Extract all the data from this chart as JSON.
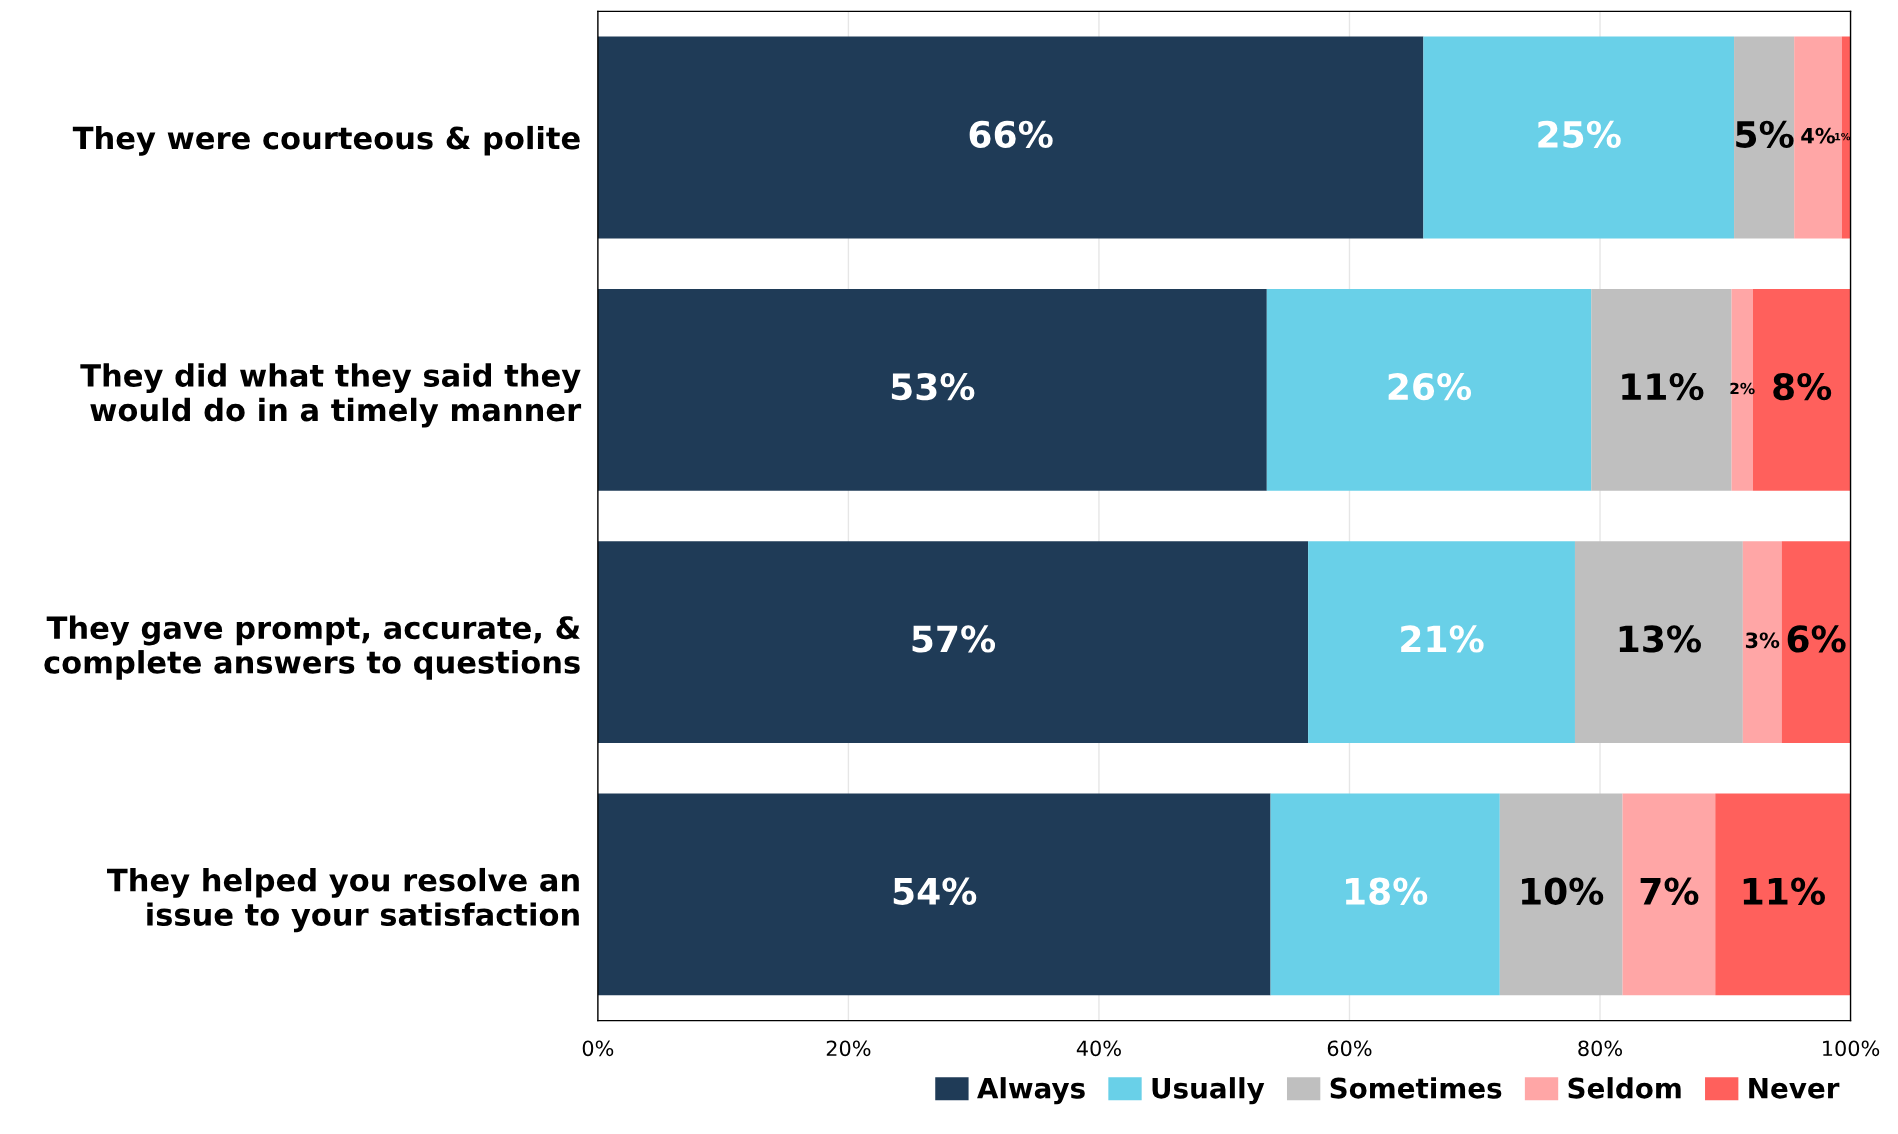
{
  "chart_data": {
    "type": "bar",
    "orientation": "horizontal",
    "stacked": true,
    "categories": [
      "They were courteous & polite",
      "They did what they said they\nwould do in a timely manner",
      "They gave prompt, accurate, &\ncomplete answers to questions",
      "They helped you resolve an\nissue to your satisfaction"
    ],
    "series": [
      {
        "name": "Always",
        "color": "#1f3b57",
        "values": [
          65.9,
          53.4,
          56.7,
          53.7
        ],
        "value_labels": [
          "66%",
          "53%",
          "57%",
          "54%"
        ]
      },
      {
        "name": "Usually",
        "color": "#69d0e8",
        "values": [
          24.8,
          25.9,
          21.3,
          18.3
        ],
        "value_labels": [
          "25%",
          "26%",
          "21%",
          "18%"
        ]
      },
      {
        "name": "Sometimes",
        "color": "#bfbfbf",
        "values": [
          4.8,
          11.2,
          13.4,
          9.8
        ],
        "value_labels": [
          "5%",
          "11%",
          "13%",
          "10%"
        ]
      },
      {
        "name": "Seldom",
        "color": "#ffa6a6",
        "values": [
          3.8,
          1.7,
          3.1,
          7.4
        ],
        "value_labels": [
          "4%",
          "2%",
          "3%",
          "7%"
        ]
      },
      {
        "name": "Never",
        "color": "#ff605c",
        "values": [
          0.7,
          7.8,
          5.5,
          10.8
        ],
        "value_labels": [
          "1%",
          "8%",
          "6%",
          "11%"
        ]
      }
    ],
    "xlim": [
      0,
      100
    ],
    "xticks": [
      {
        "value": 0,
        "label": "0%"
      },
      {
        "value": 20,
        "label": "20%"
      },
      {
        "value": 40,
        "label": "40%"
      },
      {
        "value": 60,
        "label": "60%"
      },
      {
        "value": 80,
        "label": "80%"
      },
      {
        "value": 100,
        "label": "100%"
      }
    ],
    "grid": "x",
    "legend": "bottom right"
  }
}
